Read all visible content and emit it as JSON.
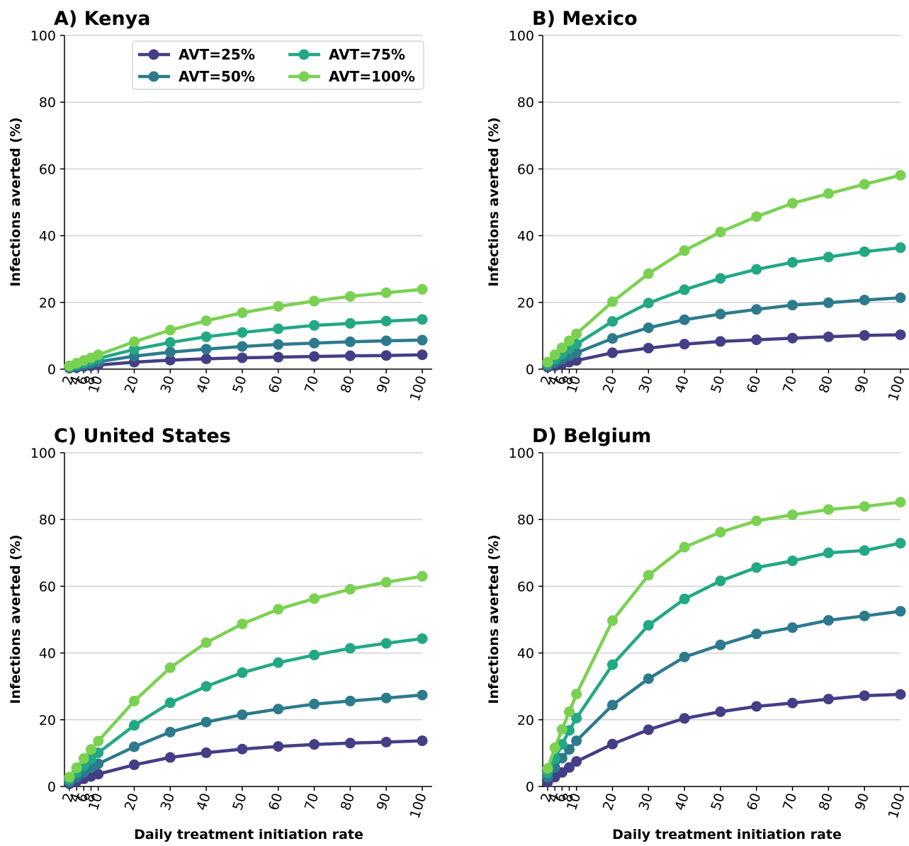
{
  "colors": {
    "AVT=25%": "#433e85",
    "AVT=50%": "#2d7a8c",
    "AVT=75%": "#22a884",
    "AVT=100%": "#7ad151"
  },
  "shared": {
    "x": [
      2,
      4,
      6,
      8,
      10,
      20,
      30,
      40,
      50,
      60,
      70,
      80,
      90,
      100
    ],
    "ylabel": "Infections averted (%)",
    "xlabel": "Daily treatment initiation rate",
    "legend_labels": [
      "AVT=25%",
      "AVT=50%",
      "AVT=75%",
      "AVT=100%"
    ]
  },
  "chart_data": [
    {
      "type": "line",
      "title": "A) Kenya",
      "xlabel": "",
      "ylabel": "Infections averted (%)",
      "ylim": [
        0,
        100
      ],
      "yticks": [
        0,
        20,
        40,
        60,
        80,
        100
      ],
      "x": [
        2,
        4,
        6,
        8,
        10,
        20,
        30,
        40,
        50,
        60,
        70,
        80,
        90,
        100
      ],
      "grid": "y",
      "legend": "top-right",
      "series": [
        {
          "name": "AVT=25%",
          "values": [
            0.3,
            0.5,
            0.8,
            1.0,
            1.2,
            2.1,
            2.7,
            3.1,
            3.4,
            3.6,
            3.8,
            4.0,
            4.1,
            4.3
          ]
        },
        {
          "name": "AVT=50%",
          "values": [
            0.5,
            0.9,
            1.3,
            1.7,
            2.2,
            3.9,
            5.1,
            6.0,
            6.8,
            7.4,
            7.8,
            8.2,
            8.5,
            8.7
          ]
        },
        {
          "name": "AVT=75%",
          "values": [
            0.7,
            1.3,
            1.9,
            2.5,
            3.2,
            5.9,
            8.0,
            9.7,
            11.0,
            12.1,
            13.1,
            13.7,
            14.4,
            14.9
          ]
        },
        {
          "name": "AVT=100%",
          "values": [
            1.0,
            1.8,
            2.6,
            3.4,
            4.3,
            8.2,
            11.7,
            14.5,
            16.9,
            18.8,
            20.4,
            21.8,
            22.9,
            23.9
          ]
        }
      ]
    },
    {
      "type": "line",
      "title": "B) Mexico",
      "xlabel": "",
      "ylabel": "Infections averted (%)",
      "ylim": [
        0,
        100
      ],
      "yticks": [
        0,
        20,
        40,
        60,
        80,
        100
      ],
      "x": [
        2,
        4,
        6,
        8,
        10,
        20,
        30,
        40,
        50,
        60,
        70,
        80,
        90,
        100
      ],
      "grid": "y",
      "series": [
        {
          "name": "AVT=25%",
          "values": [
            0.6,
            1.0,
            1.5,
            2.1,
            2.6,
            4.9,
            6.3,
            7.5,
            8.3,
            8.8,
            9.3,
            9.7,
            10.1,
            10.3
          ]
        },
        {
          "name": "AVT=50%",
          "values": [
            1.0,
            2.0,
            3.0,
            4.0,
            4.9,
            9.2,
            12.4,
            14.8,
            16.5,
            17.9,
            19.2,
            19.9,
            20.7,
            21.4
          ]
        },
        {
          "name": "AVT=75%",
          "values": [
            1.5,
            3.0,
            4.5,
            6.1,
            7.5,
            14.3,
            19.8,
            23.8,
            27.2,
            29.9,
            32.0,
            33.6,
            35.2,
            36.4
          ]
        },
        {
          "name": "AVT=100%",
          "values": [
            2.1,
            4.3,
            6.4,
            8.5,
            10.6,
            20.2,
            28.6,
            35.5,
            41.1,
            45.7,
            49.7,
            52.6,
            55.4,
            58.1
          ]
        }
      ]
    },
    {
      "type": "line",
      "title": "C) United States",
      "xlabel": "Daily treatment initiation rate",
      "ylabel": "Infections averted (%)",
      "ylim": [
        0,
        100
      ],
      "yticks": [
        0,
        20,
        40,
        60,
        80,
        100
      ],
      "x": [
        2,
        4,
        6,
        8,
        10,
        20,
        30,
        40,
        50,
        60,
        70,
        80,
        90,
        100
      ],
      "grid": "y",
      "series": [
        {
          "name": "AVT=25%",
          "values": [
            0.8,
            1.5,
            2.3,
            3.0,
            3.7,
            6.5,
            8.7,
            10.1,
            11.2,
            12.0,
            12.6,
            13.0,
            13.3,
            13.7
          ]
        },
        {
          "name": "AVT=50%",
          "values": [
            1.4,
            2.8,
            4.2,
            5.6,
            6.8,
            11.9,
            16.3,
            19.3,
            21.5,
            23.2,
            24.7,
            25.6,
            26.5,
            27.4
          ]
        },
        {
          "name": "AVT=75%",
          "values": [
            2.1,
            4.2,
            6.2,
            8.2,
            10.1,
            18.3,
            25.1,
            30.0,
            34.1,
            37.1,
            39.4,
            41.4,
            42.9,
            44.3
          ]
        },
        {
          "name": "AVT=100%",
          "values": [
            2.8,
            5.6,
            8.4,
            11.1,
            13.6,
            25.6,
            35.6,
            43.1,
            48.7,
            53.1,
            56.3,
            59.1,
            61.2,
            63.0
          ]
        }
      ]
    },
    {
      "type": "line",
      "title": "D) Belgium",
      "xlabel": "Daily treatment initiation rate",
      "ylabel": "Infections averted (%)",
      "ylim": [
        0,
        100
      ],
      "yticks": [
        0,
        20,
        40,
        60,
        80,
        100
      ],
      "x": [
        2,
        4,
        6,
        8,
        10,
        20,
        30,
        40,
        50,
        60,
        70,
        80,
        90,
        100
      ],
      "grid": "y",
      "series": [
        {
          "name": "AVT=25%",
          "values": [
            1.3,
            2.8,
            4.2,
            5.7,
            7.5,
            12.7,
            17.0,
            20.4,
            22.4,
            24.0,
            25.0,
            26.2,
            27.2,
            27.6
          ]
        },
        {
          "name": "AVT=50%",
          "values": [
            2.8,
            5.7,
            8.5,
            11.1,
            13.7,
            24.4,
            32.3,
            38.8,
            42.4,
            45.7,
            47.6,
            49.8,
            51.1,
            52.5
          ]
        },
        {
          "name": "AVT=75%",
          "values": [
            4.1,
            8.3,
            12.6,
            16.8,
            20.5,
            36.5,
            48.3,
            56.2,
            61.6,
            65.6,
            67.6,
            70.0,
            70.7,
            72.9
          ]
        },
        {
          "name": "AVT=100%",
          "values": [
            5.4,
            11.6,
            17.1,
            22.4,
            27.7,
            49.7,
            63.3,
            71.7,
            76.2,
            79.6,
            81.4,
            83.0,
            83.9,
            85.2
          ]
        }
      ]
    }
  ]
}
